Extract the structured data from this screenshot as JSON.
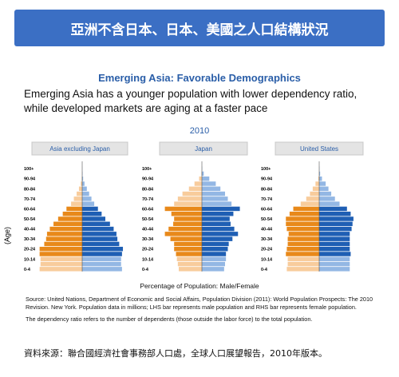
{
  "header": {
    "title": "亞洲不含日本、日本、美國之人口結構狀況"
  },
  "headline": "Emerging Asia: Favorable Demographics",
  "description": [
    "Emerging Asia has a younger population with lower dependency ratio,",
    "while developed markets are aging at a faster pace"
  ],
  "year": "2010",
  "y_label": "(Age)",
  "x_label": "Percentage of Population: Male/Female",
  "notes": [
    "Source: United Nations, Department of Economic and Social Affairs, Population Division (2011): World Population Prospects: The 2010 Revision. New York. Population data in millions; LHS bar represents male population and RHS bar represents female population.",
    "The dependency ratio refers to the number of dependents (those outside the labor force) to the total population."
  ],
  "footer": "資料來源：聯合國經濟社會事務部人口處，全球人口展望報告，2010年版本。",
  "chart_data": [
    {
      "type": "pyramid",
      "title": "Asia excluding Japan",
      "xlim": [
        0,
        5
      ],
      "categories": [
        "100+",
        null,
        "90-94",
        null,
        "80-84",
        null,
        "70-74",
        null,
        "60-64",
        null,
        "50-54",
        null,
        "40-44",
        null,
        "30-34",
        null,
        "20-24",
        null,
        "10-14",
        null,
        "0-4"
      ],
      "series": [
        {
          "side": "left",
          "values": [
            0.01,
            0.02,
            0.05,
            0.15,
            0.35,
            0.6,
            0.9,
            1.2,
            1.7,
            2.1,
            2.6,
            3.1,
            3.5,
            3.8,
            3.9,
            4.1,
            4.6,
            4.6,
            4.5,
            4.5,
            4.6
          ],
          "colors": [
            "#f8cc9c",
            "#f8cc9c",
            "#f8cc9c",
            "#f8cc9c",
            "#f8cc9c",
            "#f8cc9c",
            "#f8cc9c",
            "#f8cc9c",
            "#e8891a",
            "#e8891a",
            "#e8891a",
            "#e8891a",
            "#e8891a",
            "#e8891a",
            "#e8891a",
            "#e8891a",
            "#e8891a",
            "#e8891a",
            "#f8cc9c",
            "#f8cc9c",
            "#f8cc9c"
          ]
        },
        {
          "side": "right",
          "values": [
            0.01,
            0.04,
            0.1,
            0.25,
            0.5,
            0.75,
            1.0,
            1.3,
            1.7,
            2.1,
            2.5,
            3.0,
            3.4,
            3.7,
            3.8,
            4.0,
            4.4,
            4.3,
            4.2,
            4.2,
            4.3
          ],
          "colors": [
            "#93b7e4",
            "#93b7e4",
            "#93b7e4",
            "#93b7e4",
            "#93b7e4",
            "#93b7e4",
            "#93b7e4",
            "#93b7e4",
            "#1f5fb4",
            "#1f5fb4",
            "#1f5fb4",
            "#1f5fb4",
            "#1f5fb4",
            "#1f5fb4",
            "#1f5fb4",
            "#1f5fb4",
            "#1f5fb4",
            "#1f5fb4",
            "#93b7e4",
            "#93b7e4",
            "#93b7e4"
          ]
        }
      ]
    },
    {
      "type": "pyramid",
      "title": "Japan",
      "xlim": [
        0,
        5
      ],
      "categories": [
        "100+",
        null,
        "90-94",
        null,
        "80-84",
        null,
        "70-74",
        null,
        "60-64",
        null,
        "50-54",
        null,
        "40-44",
        null,
        "30-34",
        null,
        "20-24",
        null,
        "10-14",
        null,
        "0-4"
      ],
      "series": [
        {
          "side": "left",
          "values": [
            0.01,
            0.05,
            0.3,
            0.8,
            1.4,
            2.1,
            2.6,
            3.0,
            4.0,
            3.3,
            3.0,
            3.1,
            3.6,
            4.0,
            3.4,
            3.0,
            3.0,
            2.8,
            2.7,
            2.6,
            2.5
          ],
          "colors": [
            "#f8cc9c",
            "#f8cc9c",
            "#f8cc9c",
            "#f8cc9c",
            "#f8cc9c",
            "#f8cc9c",
            "#f8cc9c",
            "#f8cc9c",
            "#e8891a",
            "#e8891a",
            "#e8891a",
            "#e8891a",
            "#e8891a",
            "#e8891a",
            "#e8891a",
            "#e8891a",
            "#e8891a",
            "#e8891a",
            "#f8cc9c",
            "#f8cc9c",
            "#f8cc9c"
          ]
        },
        {
          "side": "right",
          "values": [
            0.03,
            0.2,
            0.8,
            1.5,
            2.0,
            2.5,
            2.8,
            3.2,
            4.1,
            3.4,
            3.0,
            3.1,
            3.5,
            3.9,
            3.3,
            2.9,
            2.8,
            2.6,
            2.6,
            2.5,
            2.4
          ],
          "colors": [
            "#93b7e4",
            "#93b7e4",
            "#93b7e4",
            "#93b7e4",
            "#93b7e4",
            "#93b7e4",
            "#93b7e4",
            "#93b7e4",
            "#1f5fb4",
            "#1f5fb4",
            "#1f5fb4",
            "#1f5fb4",
            "#1f5fb4",
            "#1f5fb4",
            "#1f5fb4",
            "#1f5fb4",
            "#1f5fb4",
            "#1f5fb4",
            "#93b7e4",
            "#93b7e4",
            "#93b7e4"
          ]
        }
      ]
    },
    {
      "type": "pyramid",
      "title": "United States",
      "xlim": [
        0,
        5
      ],
      "categories": [
        "100+",
        null,
        "90-94",
        null,
        "80-84",
        null,
        "70-74",
        null,
        "60-64",
        null,
        "50-54",
        null,
        "40-44",
        null,
        "30-34",
        null,
        "20-24",
        null,
        "10-14",
        null,
        "0-4"
      ],
      "series": [
        {
          "side": "left",
          "values": [
            0.01,
            0.03,
            0.1,
            0.4,
            0.7,
            1.0,
            1.4,
            2.0,
            2.8,
            3.2,
            3.6,
            3.6,
            3.5,
            3.3,
            3.4,
            3.4,
            3.5,
            3.6,
            3.4,
            3.4,
            3.5
          ],
          "colors": [
            "#f8cc9c",
            "#f8cc9c",
            "#f8cc9c",
            "#f8cc9c",
            "#f8cc9c",
            "#f8cc9c",
            "#f8cc9c",
            "#f8cc9c",
            "#e8891a",
            "#e8891a",
            "#e8891a",
            "#e8891a",
            "#e8891a",
            "#e8891a",
            "#e8891a",
            "#e8891a",
            "#e8891a",
            "#e8891a",
            "#f8cc9c",
            "#f8cc9c",
            "#f8cc9c"
          ]
        },
        {
          "side": "right",
          "values": [
            0.03,
            0.1,
            0.3,
            0.7,
            1.0,
            1.3,
            1.7,
            2.2,
            3.0,
            3.4,
            3.7,
            3.6,
            3.5,
            3.3,
            3.3,
            3.3,
            3.3,
            3.4,
            3.3,
            3.3,
            3.3
          ],
          "colors": [
            "#93b7e4",
            "#93b7e4",
            "#93b7e4",
            "#93b7e4",
            "#93b7e4",
            "#93b7e4",
            "#93b7e4",
            "#93b7e4",
            "#1f5fb4",
            "#1f5fb4",
            "#1f5fb4",
            "#1f5fb4",
            "#1f5fb4",
            "#1f5fb4",
            "#1f5fb4",
            "#1f5fb4",
            "#1f5fb4",
            "#1f5fb4",
            "#93b7e4",
            "#93b7e4",
            "#93b7e4"
          ]
        }
      ]
    }
  ]
}
